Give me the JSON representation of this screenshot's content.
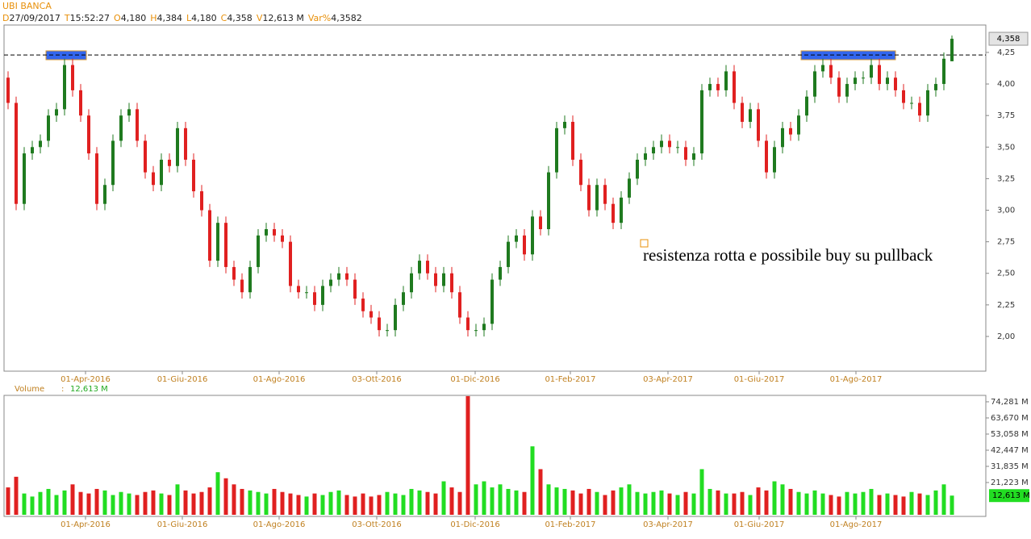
{
  "header": {
    "title": "UBI BANCA",
    "fields": [
      {
        "key": "D",
        "value": "27/09/2017"
      },
      {
        "key": "T",
        "value": "15:52:27"
      },
      {
        "key": "O",
        "value": "4,180"
      },
      {
        "key": "H",
        "value": "4,384"
      },
      {
        "key": "L",
        "value": "4,180"
      },
      {
        "key": "C",
        "value": "4,358"
      },
      {
        "key": "V",
        "value": "12,613 M"
      },
      {
        "key": "Var%",
        "value": "4,3582"
      }
    ]
  },
  "annotation": "resistenza rotta e possibile buy su pullback",
  "chart_data": [
    {
      "type": "candlestick",
      "up_color": "#1f7a1f",
      "down_color": "#e02020",
      "hline": 4.23,
      "xlim": [
        -0.5,
        121.2
      ],
      "xticks": [
        {
          "value": 9.6,
          "label": "01-Apr-2016"
        },
        {
          "value": 21.6,
          "label": "01-Giu-2016"
        },
        {
          "value": 33.6,
          "label": "01-Ago-2016"
        },
        {
          "value": 45.7,
          "label": "03-Ott-2016"
        },
        {
          "value": 57.9,
          "label": "01-Dic-2016"
        },
        {
          "value": 69.7,
          "label": "01-Feb-2017"
        },
        {
          "value": 81.8,
          "label": "03-Apr-2017"
        },
        {
          "value": 93.1,
          "label": "01-Giu-2017"
        },
        {
          "value": 105.1,
          "label": "01-Ago-2017"
        }
      ],
      "ylim": [
        1.725,
        4.467
      ],
      "yticks": [
        {
          "value": 2.0,
          "label": "2,00"
        },
        {
          "value": 2.25,
          "label": "2,25"
        },
        {
          "value": 2.5,
          "label": "2,50"
        },
        {
          "value": 2.75,
          "label": "2,75"
        },
        {
          "value": 3.0,
          "label": "3,00"
        },
        {
          "value": 3.25,
          "label": "3,25"
        },
        {
          "value": 3.5,
          "label": "3,50"
        },
        {
          "value": 3.75,
          "label": "3,75"
        },
        {
          "value": 4.0,
          "label": "4,00"
        },
        {
          "value": 4.25,
          "label": "4,25"
        }
      ],
      "last": {
        "value": 4.358,
        "label": "4,358"
      },
      "open": [
        4.05,
        3.85,
        3.05,
        3.45,
        3.5,
        3.55,
        3.75,
        3.8,
        4.15,
        3.95,
        3.75,
        3.45,
        3.05,
        3.2,
        3.55,
        3.75,
        3.8,
        3.55,
        3.3,
        3.2,
        3.4,
        3.35,
        3.65,
        3.4,
        3.15,
        3.0,
        2.6,
        2.9,
        2.55,
        2.45,
        2.35,
        2.55,
        2.8,
        2.85,
        2.8,
        2.75,
        2.4,
        2.35,
        2.35,
        2.25,
        2.4,
        2.45,
        2.5,
        2.45,
        2.3,
        2.2,
        2.15,
        2.05,
        2.05,
        2.25,
        2.35,
        2.5,
        2.6,
        2.5,
        2.4,
        2.5,
        2.35,
        2.15,
        2.05,
        2.05,
        2.1,
        2.45,
        2.55,
        2.75,
        2.8,
        2.65,
        2.95,
        2.85,
        3.3,
        3.65,
        3.7,
        3.4,
        3.2,
        3.0,
        3.2,
        3.05,
        2.9,
        3.1,
        3.25,
        3.4,
        3.45,
        3.5,
        3.55,
        3.5,
        3.5,
        3.4,
        3.45,
        3.95,
        4.0,
        3.95,
        4.1,
        3.85,
        3.7,
        3.8,
        3.55,
        3.3,
        3.5,
        3.65,
        3.6,
        3.75,
        3.9,
        4.1,
        4.15,
        4.05,
        3.9,
        4.0,
        4.05,
        4.05,
        4.15,
        4.0,
        4.05,
        3.95,
        3.85,
        3.85,
        3.75,
        3.95,
        4.0,
        4.18
      ],
      "high": [
        4.1,
        3.9,
        3.5,
        3.55,
        3.6,
        3.8,
        3.85,
        4.2,
        4.2,
        4.0,
        3.8,
        3.5,
        3.25,
        3.6,
        3.8,
        3.85,
        3.85,
        3.6,
        3.35,
        3.45,
        3.45,
        3.7,
        3.7,
        3.45,
        3.2,
        3.05,
        2.95,
        2.95,
        2.6,
        2.5,
        2.6,
        2.85,
        2.9,
        2.9,
        2.85,
        2.8,
        2.45,
        2.4,
        2.4,
        2.45,
        2.5,
        2.55,
        2.55,
        2.5,
        2.35,
        2.25,
        2.2,
        2.1,
        2.3,
        2.4,
        2.55,
        2.65,
        2.65,
        2.55,
        2.55,
        2.55,
        2.4,
        2.2,
        2.1,
        2.15,
        2.5,
        2.6,
        2.8,
        2.85,
        2.85,
        3.0,
        3.0,
        3.35,
        3.7,
        3.75,
        3.75,
        3.45,
        3.25,
        3.25,
        3.25,
        3.1,
        3.15,
        3.3,
        3.45,
        3.5,
        3.55,
        3.6,
        3.6,
        3.55,
        3.55,
        3.5,
        4.0,
        4.05,
        4.05,
        4.15,
        4.15,
        3.9,
        3.85,
        3.85,
        3.6,
        3.55,
        3.7,
        3.7,
        3.8,
        3.95,
        4.15,
        4.2,
        4.2,
        4.1,
        4.05,
        4.1,
        4.1,
        4.2,
        4.2,
        4.1,
        4.1,
        4.0,
        3.9,
        3.9,
        4.0,
        4.05,
        4.25,
        4.384
      ],
      "low": [
        3.8,
        3.0,
        3.0,
        3.4,
        3.45,
        3.5,
        3.7,
        3.75,
        3.9,
        3.7,
        3.4,
        3.0,
        3.0,
        3.15,
        3.5,
        3.7,
        3.5,
        3.25,
        3.15,
        3.15,
        3.3,
        3.3,
        3.35,
        3.1,
        2.95,
        2.55,
        2.55,
        2.5,
        2.4,
        2.3,
        2.3,
        2.5,
        2.75,
        2.75,
        2.7,
        2.35,
        2.3,
        2.3,
        2.2,
        2.2,
        2.35,
        2.4,
        2.4,
        2.25,
        2.15,
        2.1,
        2.0,
        2.0,
        2.0,
        2.2,
        2.3,
        2.45,
        2.45,
        2.35,
        2.35,
        2.3,
        2.1,
        2.0,
        2.0,
        2.0,
        2.05,
        2.4,
        2.5,
        2.7,
        2.6,
        2.6,
        2.8,
        2.8,
        3.25,
        3.6,
        3.35,
        3.15,
        2.95,
        2.95,
        3.0,
        2.85,
        2.85,
        3.05,
        3.2,
        3.35,
        3.4,
        3.45,
        3.45,
        3.45,
        3.35,
        3.35,
        3.4,
        3.9,
        3.9,
        3.9,
        3.8,
        3.65,
        3.65,
        3.5,
        3.25,
        3.25,
        3.45,
        3.55,
        3.55,
        3.7,
        3.85,
        4.05,
        4.0,
        3.85,
        3.85,
        3.95,
        4.0,
        4.0,
        3.95,
        3.95,
        3.9,
        3.8,
        3.8,
        3.7,
        3.7,
        3.9,
        3.95,
        4.18
      ],
      "close": [
        3.85,
        3.05,
        3.45,
        3.5,
        3.55,
        3.75,
        3.8,
        4.15,
        3.95,
        3.75,
        3.45,
        3.05,
        3.2,
        3.55,
        3.75,
        3.8,
        3.55,
        3.3,
        3.2,
        3.4,
        3.35,
        3.65,
        3.4,
        3.15,
        3.0,
        2.6,
        2.9,
        2.55,
        2.45,
        2.35,
        2.55,
        2.8,
        2.85,
        2.8,
        2.75,
        2.4,
        2.35,
        2.35,
        2.25,
        2.4,
        2.45,
        2.5,
        2.45,
        2.3,
        2.2,
        2.15,
        2.05,
        2.05,
        2.25,
        2.35,
        2.5,
        2.6,
        2.5,
        2.4,
        2.5,
        2.35,
        2.15,
        2.05,
        2.05,
        2.1,
        2.45,
        2.55,
        2.75,
        2.8,
        2.65,
        2.95,
        2.85,
        3.3,
        3.65,
        3.7,
        3.4,
        3.2,
        3.0,
        3.2,
        3.05,
        2.9,
        3.1,
        3.25,
        3.4,
        3.45,
        3.5,
        3.55,
        3.5,
        3.5,
        3.4,
        3.45,
        3.95,
        4.0,
        3.95,
        4.1,
        3.85,
        3.7,
        3.8,
        3.55,
        3.3,
        3.5,
        3.65,
        3.6,
        3.75,
        3.9,
        4.1,
        4.15,
        4.05,
        3.9,
        4.0,
        4.05,
        4.05,
        4.15,
        4.0,
        4.05,
        3.95,
        3.85,
        3.85,
        3.75,
        3.95,
        4.0,
        4.2,
        4.358
      ]
    },
    {
      "type": "bar",
      "name": "Volume",
      "separator": ":",
      "up_color": "#22dd22",
      "down_color": "#e02020",
      "ylim": [
        -1.06,
        78.5
      ],
      "yticks": [
        {
          "value": 21.223,
          "label": "21,223 M"
        },
        {
          "value": 31.835,
          "label": "31,835 M"
        },
        {
          "value": 42.447,
          "label": "42,447 M"
        },
        {
          "value": 53.058,
          "label": "53,058 M"
        },
        {
          "value": 63.67,
          "label": "63,670 M"
        },
        {
          "value": 74.281,
          "label": "74,281 M"
        }
      ],
      "last": {
        "value": 12.613,
        "label": "12,613 M"
      },
      "values": [
        18,
        25,
        14,
        12,
        15,
        17,
        13,
        16,
        20,
        15,
        14,
        17,
        16,
        13,
        15,
        14,
        13,
        15,
        16,
        14,
        13,
        20,
        16,
        14,
        15,
        18,
        28,
        24,
        20,
        17,
        16,
        15,
        14,
        17,
        15,
        14,
        13,
        12,
        14,
        13,
        15,
        16,
        13,
        12,
        14,
        12,
        13,
        15,
        14,
        13,
        17,
        16,
        15,
        14,
        22,
        18,
        15,
        78,
        20,
        22,
        18,
        20,
        17,
        16,
        15,
        45,
        30,
        20,
        18,
        17,
        16,
        14,
        17,
        15,
        13,
        16,
        18,
        20,
        15,
        14,
        15,
        16,
        14,
        13,
        15,
        14,
        30,
        17,
        16,
        14,
        14,
        15,
        13,
        18,
        16,
        22,
        20,
        17,
        15,
        14,
        16,
        14,
        13,
        12,
        15,
        14,
        15,
        17,
        13,
        14,
        13,
        12,
        15,
        14,
        13,
        16,
        20,
        12.613
      ]
    }
  ]
}
